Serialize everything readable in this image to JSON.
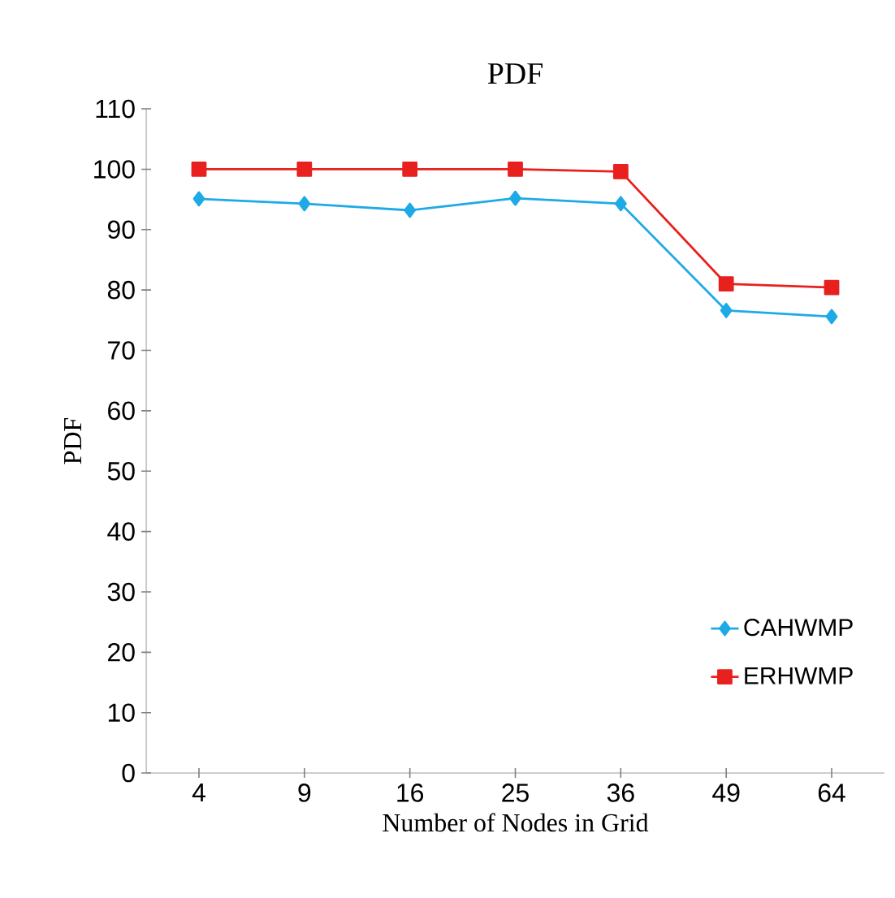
{
  "chart_data": {
    "type": "line",
    "title": "PDF",
    "xlabel": "Number of Nodes in Grid",
    "ylabel": "PDF",
    "categories": [
      "4",
      "9",
      "16",
      "25",
      "36",
      "49",
      "64"
    ],
    "series": [
      {
        "name": "CAHWMP",
        "color": "#1eaae6",
        "marker": "diamond",
        "values": [
          95.1,
          94.3,
          93.2,
          95.2,
          94.3,
          76.6,
          75.6
        ]
      },
      {
        "name": "ERHWMP",
        "color": "#e8201e",
        "marker": "square",
        "values": [
          100,
          100,
          100,
          100,
          99.6,
          81.0,
          80.4
        ]
      }
    ],
    "ylim": [
      0,
      110
    ],
    "yticks": [
      0,
      10,
      20,
      30,
      40,
      50,
      60,
      70,
      80,
      90,
      100,
      110
    ],
    "legend": "bottom right",
    "grid": false
  }
}
